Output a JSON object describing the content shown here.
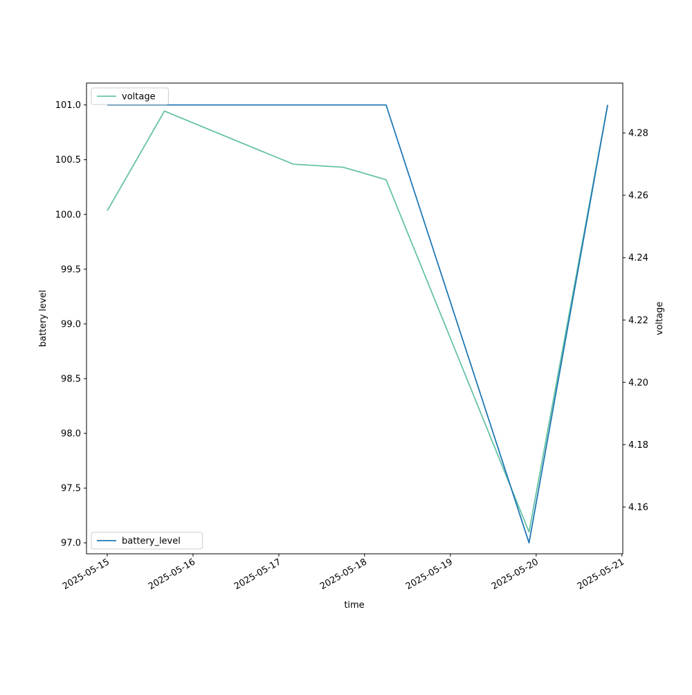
{
  "chart_data": {
    "type": "line",
    "xlabel": "time",
    "x_ticks": [
      "2025-05-15",
      "2025-05-16",
      "2025-05-17",
      "2025-05-18",
      "2025-05-19",
      "2025-05-20",
      "2025-05-21"
    ],
    "x_range": [
      "2025-05-14 18:12",
      "2025-05-21 00:14"
    ],
    "y_left": {
      "label": "battery level",
      "ticks": [
        "97.0",
        "97.5",
        "98.0",
        "98.5",
        "99.0",
        "99.5",
        "100.0",
        "100.5",
        "101.0"
      ],
      "range": [
        96.9,
        101.2
      ]
    },
    "y_right": {
      "label": "voltage",
      "ticks": [
        "4.16",
        "4.18",
        "4.20",
        "4.22",
        "4.24",
        "4.26",
        "4.28"
      ],
      "range": [
        4.145,
        4.296
      ]
    },
    "series": [
      {
        "name": "battery_level",
        "axis": "left",
        "color": "#1f77b4",
        "points": [
          {
            "x": "2025-05-15 00:00",
            "y": 101.0
          },
          {
            "x": "2025-05-18 06:00",
            "y": 101.0
          },
          {
            "x": "2025-05-19 22:00",
            "y": 97.0
          },
          {
            "x": "2025-05-20 20:00",
            "y": 101.0
          }
        ]
      },
      {
        "name": "voltage",
        "axis": "right",
        "color": "#66c2a5",
        "points": [
          {
            "x": "2025-05-15 00:00",
            "y": 4.255
          },
          {
            "x": "2025-05-15 16:00",
            "y": 4.287
          },
          {
            "x": "2025-05-17 04:00",
            "y": 4.27
          },
          {
            "x": "2025-05-17 18:00",
            "y": 4.269
          },
          {
            "x": "2025-05-18 06:00",
            "y": 4.265
          },
          {
            "x": "2025-05-19 22:00",
            "y": 4.152
          },
          {
            "x": "2025-05-20 20:00",
            "y": 4.289
          }
        ]
      }
    ],
    "legends": [
      {
        "series": "voltage",
        "placement": "upper left"
      },
      {
        "series": "battery_level",
        "placement": "lower left"
      }
    ],
    "grid": false
  }
}
